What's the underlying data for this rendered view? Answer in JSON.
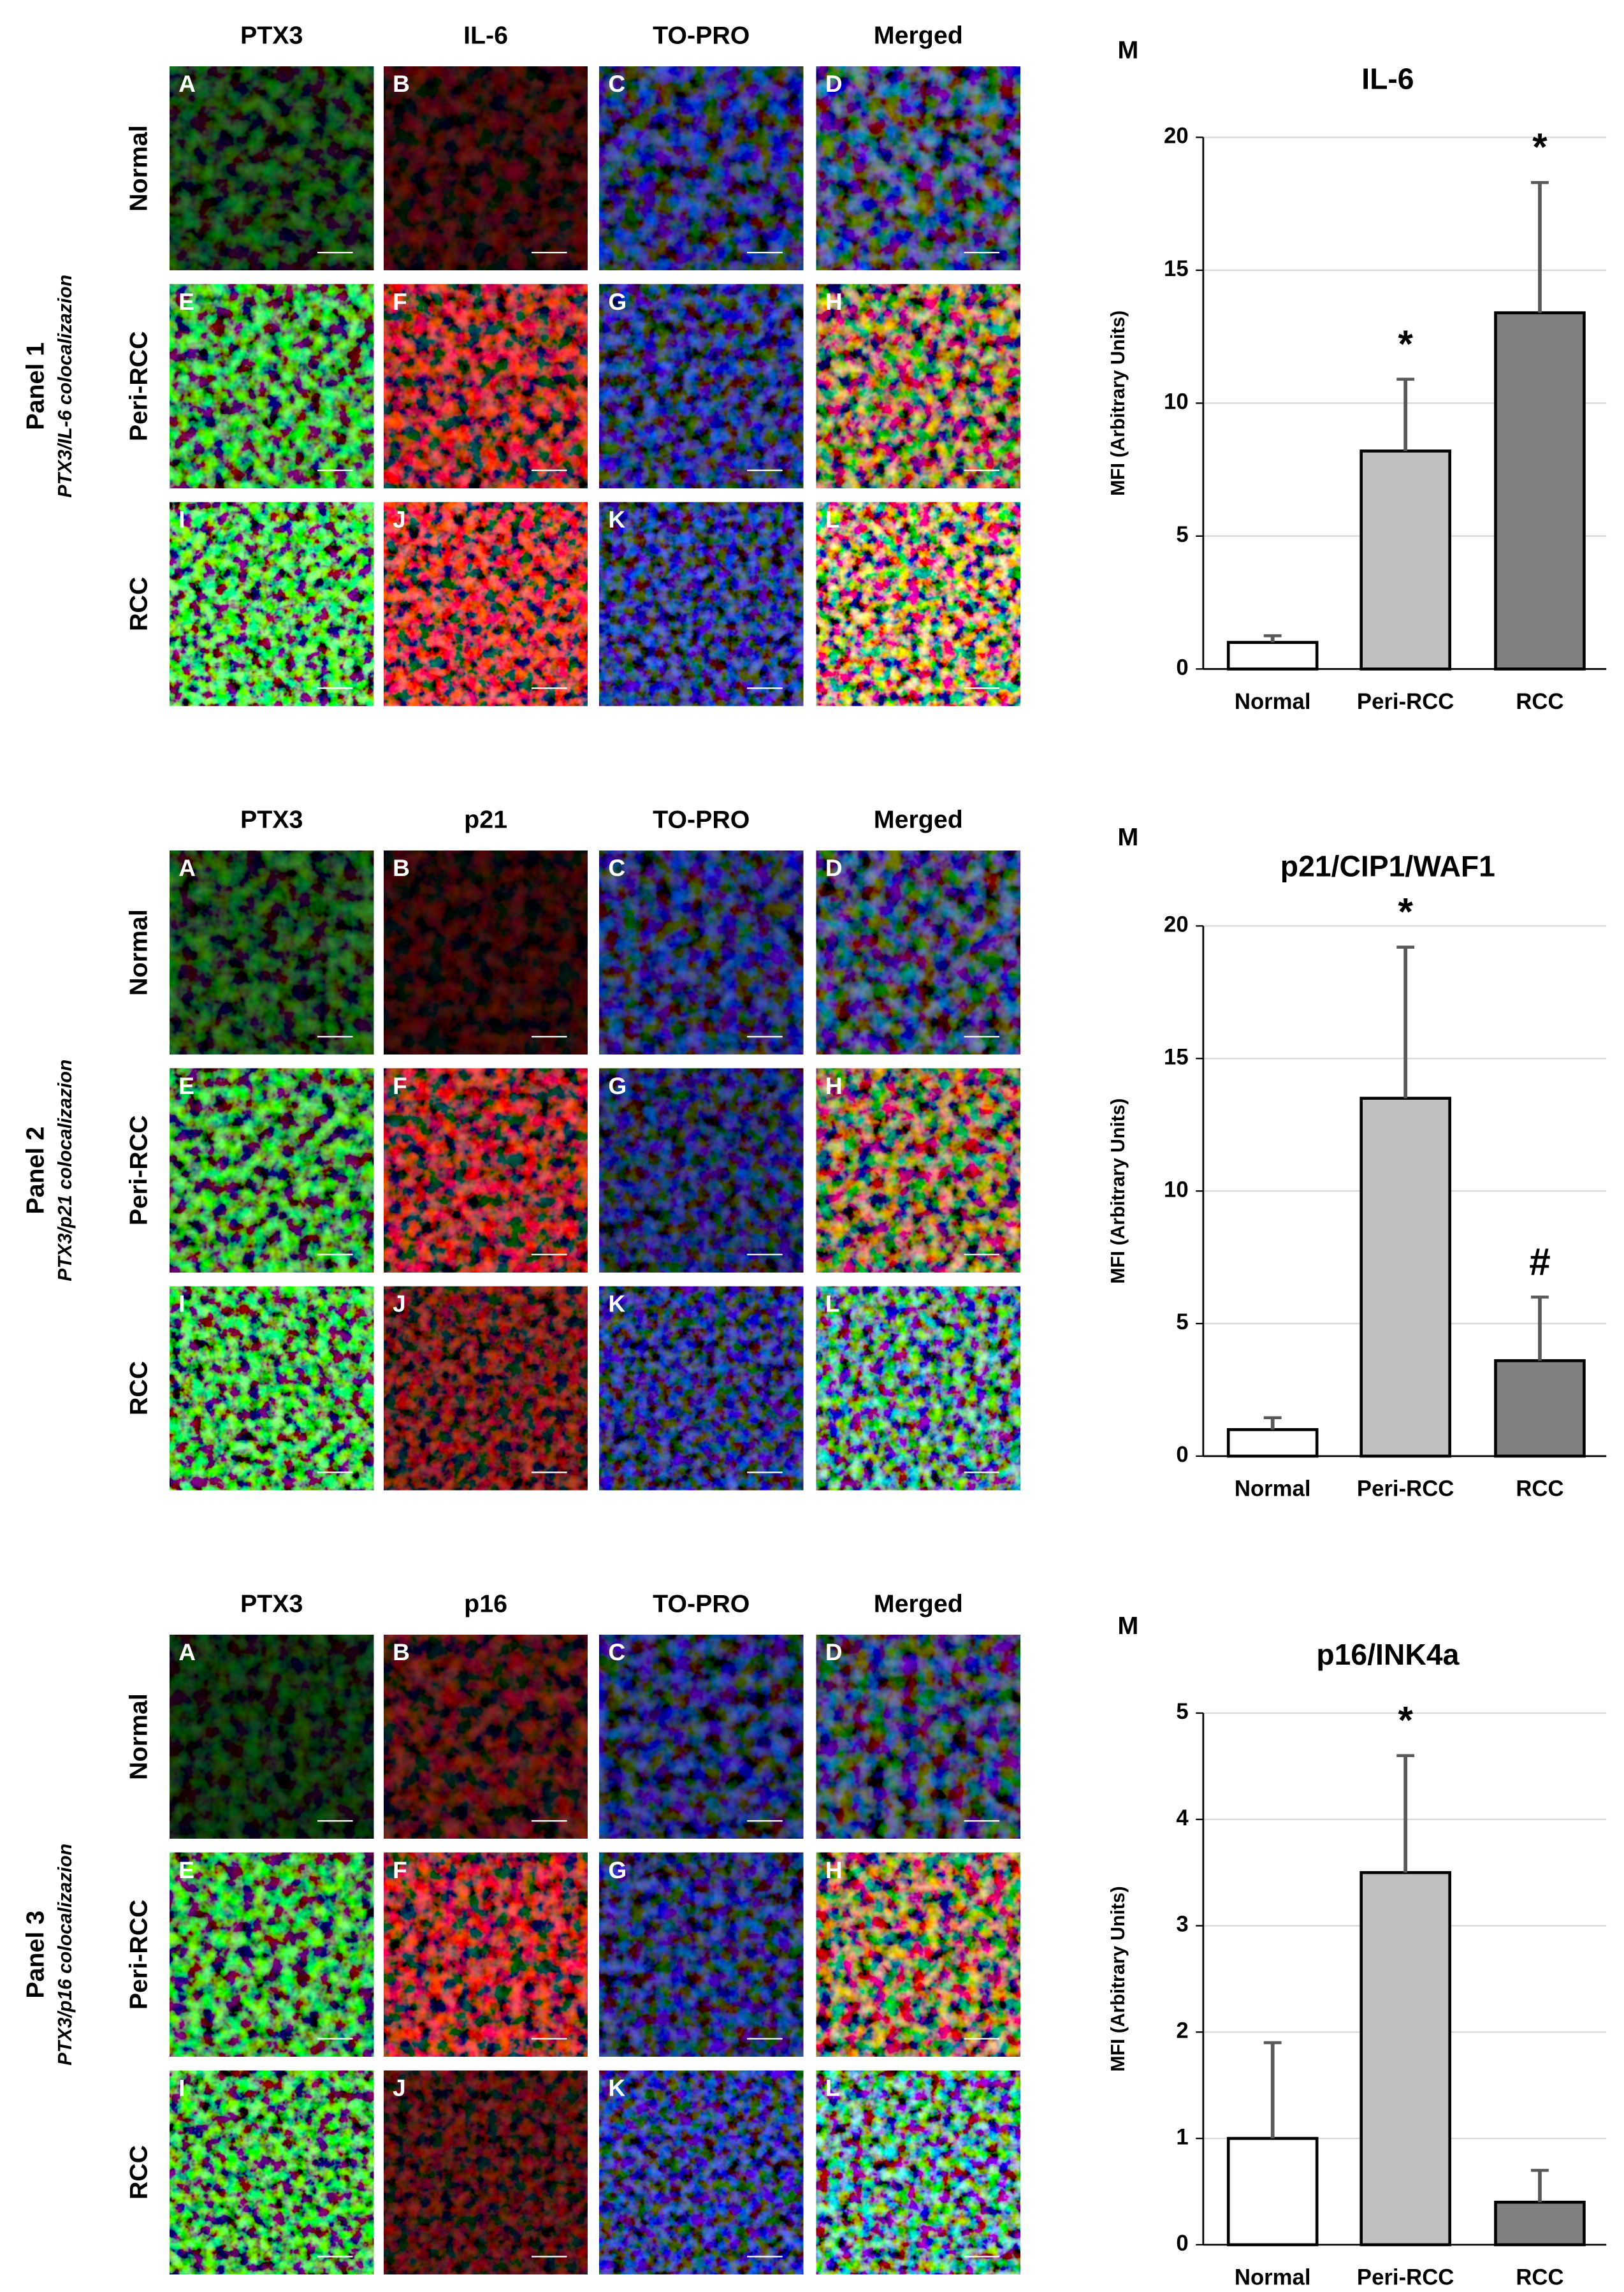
{
  "figure_panels": [
    {
      "title": "Panel 1",
      "subtitle": "PTX3/IL-6 colocalizazion",
      "columns": [
        "PTX3",
        "IL-6",
        "TO-PRO",
        "Merged"
      ],
      "rows": [
        "Normal",
        "Peri-RCC",
        "RCC"
      ],
      "letters": [
        "A",
        "B",
        "C",
        "D",
        "E",
        "F",
        "G",
        "H",
        "I",
        "J",
        "K",
        "L"
      ]
    },
    {
      "title": "Panel 2",
      "subtitle": "PTX3/p21 colocalizazion",
      "columns": [
        "PTX3",
        "p21",
        "TO-PRO",
        "Merged"
      ],
      "rows": [
        "Normal",
        "Peri-RCC",
        "RCC"
      ],
      "letters": [
        "A",
        "B",
        "C",
        "D",
        "E",
        "F",
        "G",
        "H",
        "I",
        "J",
        "K",
        "L"
      ]
    },
    {
      "title": "Panel 3",
      "subtitle": "PTX3/p16 colocalizazion",
      "columns": [
        "PTX3",
        "p16",
        "TO-PRO",
        "Merged"
      ],
      "rows": [
        "Normal",
        "Peri-RCC",
        "RCC"
      ],
      "letters": [
        "A",
        "B",
        "C",
        "D",
        "E",
        "F",
        "G",
        "H",
        "I",
        "J",
        "K",
        "L"
      ]
    }
  ],
  "chart_data": [
    {
      "type": "bar",
      "panel_label": "M",
      "title": "IL-6",
      "y_label": "MFI (Arbitrary Units)",
      "categories": [
        "Normal",
        "Peri-RCC",
        "RCC"
      ],
      "values": [
        1.0,
        8.2,
        13.4
      ],
      "errors": [
        0.25,
        2.7,
        4.9
      ],
      "markers": [
        null,
        "*",
        "*"
      ],
      "colors": [
        "#ffffff",
        "#c0c0c0",
        "#808080"
      ],
      "ylim": [
        0,
        20
      ],
      "yticks": [
        0,
        5,
        10,
        15,
        20
      ],
      "grid": true
    },
    {
      "type": "bar",
      "panel_label": "M",
      "title": "p21/CIP1/WAF1",
      "y_label": "MFI (Arbitrary Units)",
      "categories": [
        "Normal",
        "Peri-RCC",
        "RCC"
      ],
      "values": [
        1.0,
        13.5,
        3.6
      ],
      "errors": [
        0.45,
        5.7,
        2.4
      ],
      "markers": [
        null,
        "*",
        "#"
      ],
      "colors": [
        "#ffffff",
        "#c0c0c0",
        "#808080"
      ],
      "ylim": [
        0,
        20
      ],
      "yticks": [
        0,
        5,
        10,
        15,
        20
      ],
      "grid": true
    },
    {
      "type": "bar",
      "panel_label": "M",
      "title": "p16/INK4a",
      "y_label": "MFI (Arbitrary Units)",
      "categories": [
        "Normal",
        "Peri-RCC",
        "RCC"
      ],
      "values": [
        1.0,
        3.5,
        0.4
      ],
      "errors": [
        0.9,
        1.1,
        0.3
      ],
      "markers": [
        null,
        "*",
        null
      ],
      "colors": [
        "#ffffff",
        "#c0c0c0",
        "#808080"
      ],
      "ylim": [
        0,
        5
      ],
      "yticks": [
        0,
        1,
        2,
        3,
        4,
        5
      ],
      "grid": true
    }
  ]
}
